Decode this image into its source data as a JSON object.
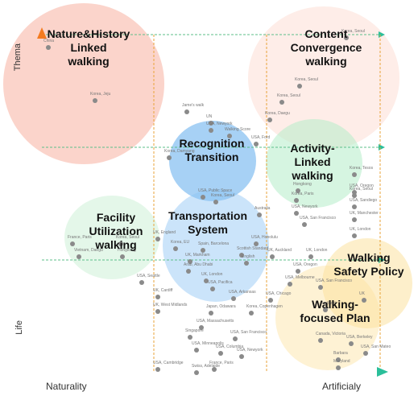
{
  "axes": {
    "y_top": "Thema",
    "y_bottom": "Life",
    "x_left": "Naturality",
    "x_right": "Artificialy"
  },
  "colors": {
    "y_axis_gradient": [
      "#f47b20",
      "#f8c8a8"
    ],
    "x_axis_gradient": [
      "#f2b400",
      "#2bbf9a"
    ],
    "guide_green": "#5cbf8a",
    "guide_orange": "#e8a33a"
  },
  "clusters": {
    "nature": "Nature&History\nLinked\nwalking",
    "content": "Content\nConvergence\nwalking",
    "recognition": "Recognition\nTransition",
    "activity": "Activity-\nLinked\nwalking",
    "facility": "Facility\nUtilization\nwalking",
    "transportation": "Transportation\nSystem",
    "safety": "Walking\nSafety Policy",
    "plan": "Walking-\nfocused Plan"
  },
  "cases": [
    "China",
    "Korea, Jeju",
    "Korea, Seoul",
    "Korea, Seoul",
    "Korea, Seoul",
    "Korea, Daegu",
    "Jame's walk",
    "UN",
    "USA, Newyork",
    "Walking Score",
    "USA, Ford",
    "Korea, Damyang",
    "Hongkong",
    "Korea, Paris",
    "USA, Newyork",
    "USA, San Francisco",
    "Korea, Tesos",
    "USA, Oregon",
    "USA, Sandiego",
    "UK, Manchester",
    "UK, London",
    "France, Paris",
    "Korea, Seoul",
    "Vietnam, Daegu",
    "Hongkong",
    "USA, Public Space",
    "Korea, Seoul",
    "Australia",
    "UK, England",
    "Korea, EU",
    "Spain, Barcelona",
    "USA, Honolulu",
    "Scottish Standard",
    "English",
    "UK, Markham",
    "Arab, Abu Dhabi",
    "UK, London",
    "USA, Pacifica",
    "USA, Arkansas",
    "UK, Auckland",
    "UK, London",
    "USA, Oregon",
    "USA, Melbourne",
    "USA, Chicago",
    "UK, Cardiff",
    "UK, West Midlands",
    "Japan, Odawara",
    "Korea, Copenhagen",
    "USA, Massachusetts",
    "Singapore",
    "USA, Minneapolis",
    "USA, San Francisco",
    "USA, Cambridge",
    "USA, Columbia",
    "USA, Newyork",
    "France, Paris",
    "Swiss, Adelaide",
    "USA, San Francisco",
    "Portland",
    "Canada, Victoria",
    "USA, San Mateo",
    "USA, Berkeley",
    "Barbara",
    "Maryland",
    "Korea, Seoul",
    "UK",
    "USA, Seattle"
  ]
}
